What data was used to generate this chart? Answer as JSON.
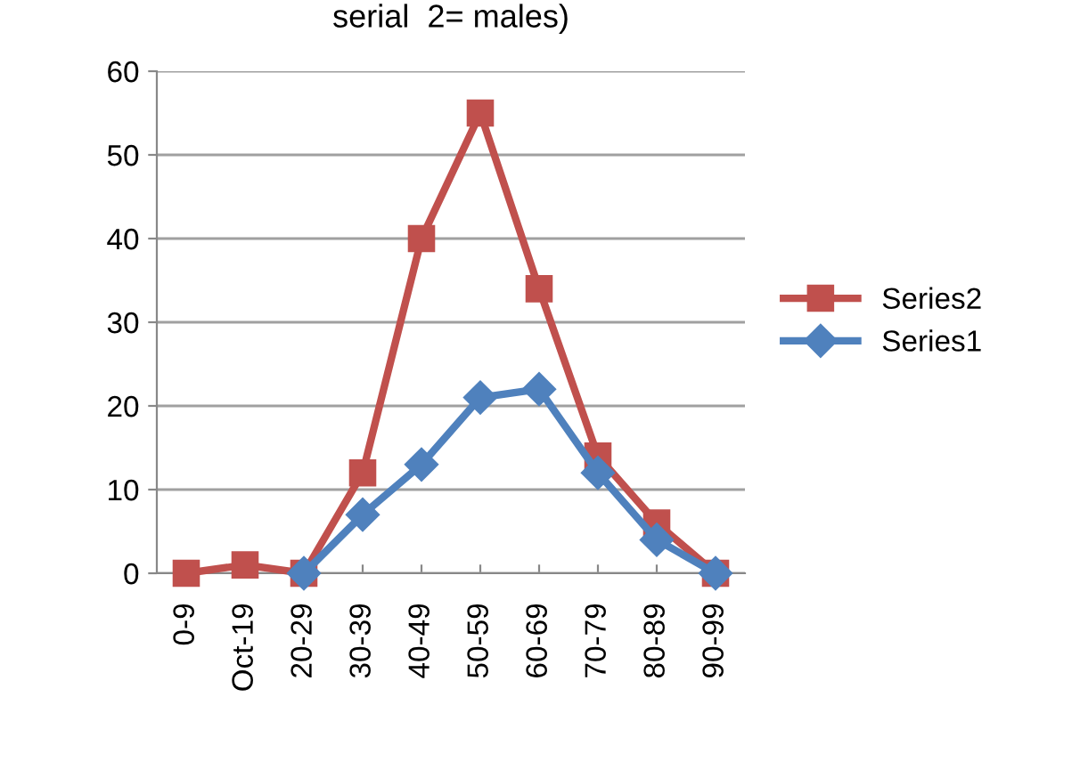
{
  "chart_data": {
    "type": "line",
    "title": "serial  2= males)",
    "categories": [
      "0-9",
      "Oct-19",
      "20-29",
      "30-39",
      "40-49",
      "50-59",
      "60-69",
      "70-79",
      "80-89",
      "90-99"
    ],
    "series": [
      {
        "name": "Series2",
        "color": "#c0504d",
        "marker": "square",
        "values": [
          0,
          1,
          0,
          12,
          40,
          55,
          34,
          14,
          6,
          0
        ]
      },
      {
        "name": "Series1",
        "color": "#4f81bd",
        "marker": "diamond",
        "values": [
          null,
          null,
          0,
          7,
          13,
          21,
          22,
          12,
          4,
          0
        ]
      }
    ],
    "ylim": [
      0,
      60
    ],
    "yticks": [
      0,
      10,
      20,
      30,
      40,
      50,
      60
    ],
    "grid": "y",
    "legend": "right",
    "line_style": "solid"
  }
}
